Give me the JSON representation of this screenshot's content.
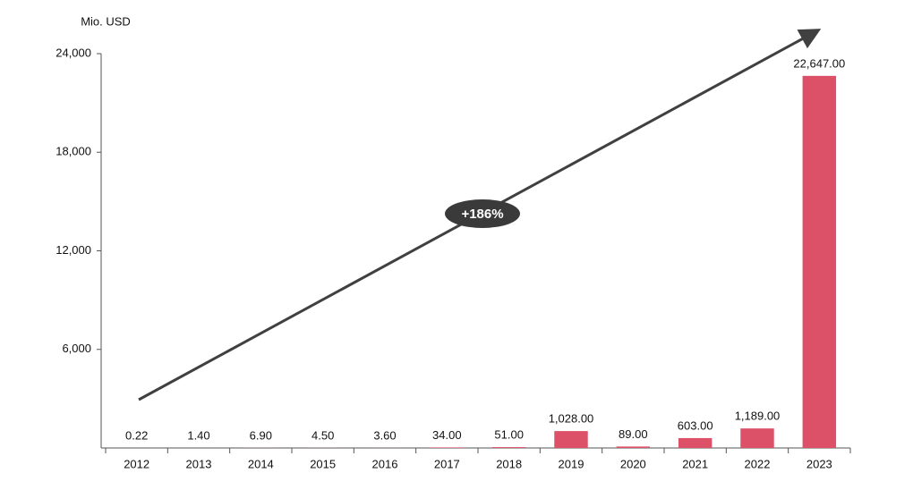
{
  "chart_data": {
    "type": "bar",
    "axis_label": "Mio. USD",
    "annotation": "+186%",
    "categories": [
      "2012",
      "2013",
      "2014",
      "2015",
      "2016",
      "2017",
      "2018",
      "2019",
      "2020",
      "2021",
      "2022",
      "2023"
    ],
    "values": [
      0.22,
      1.4,
      6.9,
      4.5,
      3.6,
      34,
      51,
      1028,
      89,
      603,
      1189,
      22647
    ],
    "value_labels": [
      "0.22",
      "1.40",
      "6.90",
      "4.50",
      "3.60",
      "34.00",
      "51.00",
      "1,028.00",
      "89.00",
      "603.00",
      "1,189.00",
      "22,647.00"
    ],
    "color": "#dc5068",
    "ylim": [
      0,
      24000
    ],
    "yticks": [
      {
        "value": 6000,
        "label": "6,000"
      },
      {
        "value": 12000,
        "label": "12,000"
      },
      {
        "value": 18000,
        "label": "18,000"
      },
      {
        "value": 24000,
        "label": "24,000"
      }
    ],
    "grid": false
  }
}
